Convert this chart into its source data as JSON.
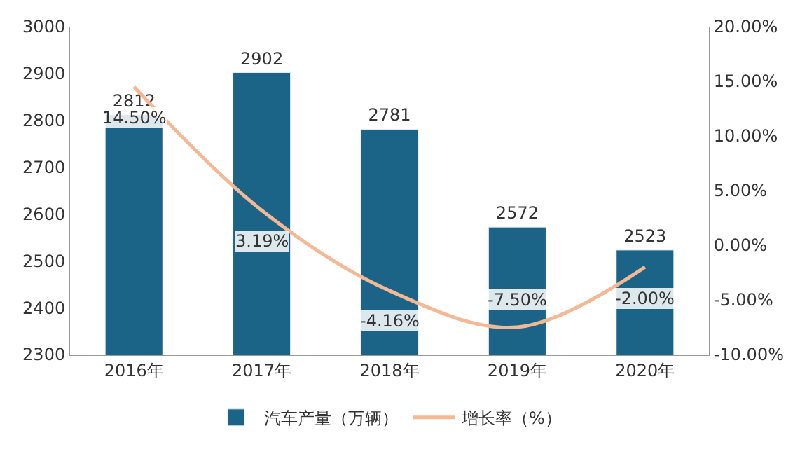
{
  "chart_data": {
    "type": "bar",
    "categories": [
      "2016年",
      "2017年",
      "2018年",
      "2019年",
      "2020年"
    ],
    "series": [
      {
        "name": "汽车产量（万辆）",
        "color": "#1b6487",
        "values": [
          2812,
          2902,
          2781,
          2572,
          2523
        ],
        "value_labels": [
          "2812",
          "2902",
          "2781",
          "2572",
          "2523"
        ]
      },
      {
        "name": "增长率（%）",
        "type": "line",
        "axis": "y2",
        "color": "#f4b894",
        "values": [
          14.5,
          3.19,
          -4.16,
          -7.5,
          -2.0
        ],
        "value_labels": [
          "14.50%",
          "3.19%",
          "-4.16%",
          "-7.50%",
          "-2.00%"
        ]
      }
    ],
    "ylim": [
      2300,
      3000
    ],
    "yticks": [
      2300,
      2400,
      2500,
      2600,
      2700,
      2800,
      2900,
      3000
    ],
    "y2lim": [
      -10,
      20
    ],
    "y2ticks": [
      {
        "value": -10,
        "label": "-10.00%"
      },
      {
        "value": -5,
        "label": "-5.00%"
      },
      {
        "value": 0,
        "label": "0.00%"
      },
      {
        "value": 5,
        "label": "5.00%"
      },
      {
        "value": 10,
        "label": "10.00%"
      },
      {
        "value": 15,
        "label": "15.00%"
      },
      {
        "value": 20,
        "label": "20.00%"
      }
    ],
    "legend": "bottom",
    "marker": "none",
    "line_style": "solid"
  }
}
